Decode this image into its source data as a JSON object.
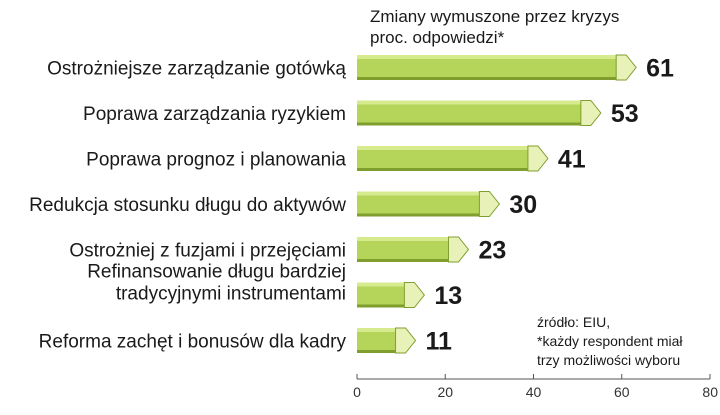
{
  "chart_data": {
    "type": "bar",
    "orientation": "horizontal",
    "title": "Zmiany wymuszone przez kryzys",
    "subtitle": "proc. odpowiedzi*",
    "categories": [
      "Ostrożniejsze zarządzanie gotówką",
      "Poprawa zarządzania ryzykiem",
      "Poprawa prognoz i planowania",
      "Redukcja stosunku długu do aktywów",
      "Ostrożniej z fuzjami i przejęciami",
      [
        "Refinansowanie długu bardziej",
        "tradycyjnymi instrumentami"
      ],
      "Reforma zachęt i bonusów dla kadry"
    ],
    "values": [
      61,
      53,
      41,
      30,
      23,
      13,
      11
    ],
    "value_labels": [
      "61",
      "53",
      "41",
      "30",
      "23",
      "13",
      "11"
    ],
    "xlim": [
      0,
      80
    ],
    "xticks": [
      0,
      20,
      40,
      60,
      80
    ],
    "xtick_labels": [
      "0",
      "20",
      "40",
      "60",
      "80"
    ],
    "grid": false,
    "bar_color": "#b5d45a",
    "bar_highlight": "#d6ea8e",
    "bar_shadow": "#7f9e2e",
    "bar_end_color": "#e8f2b8",
    "note_lines": [
      "źródło: EIU,",
      "*każdy respondent miał",
      "trzy możliwości wyboru"
    ]
  }
}
